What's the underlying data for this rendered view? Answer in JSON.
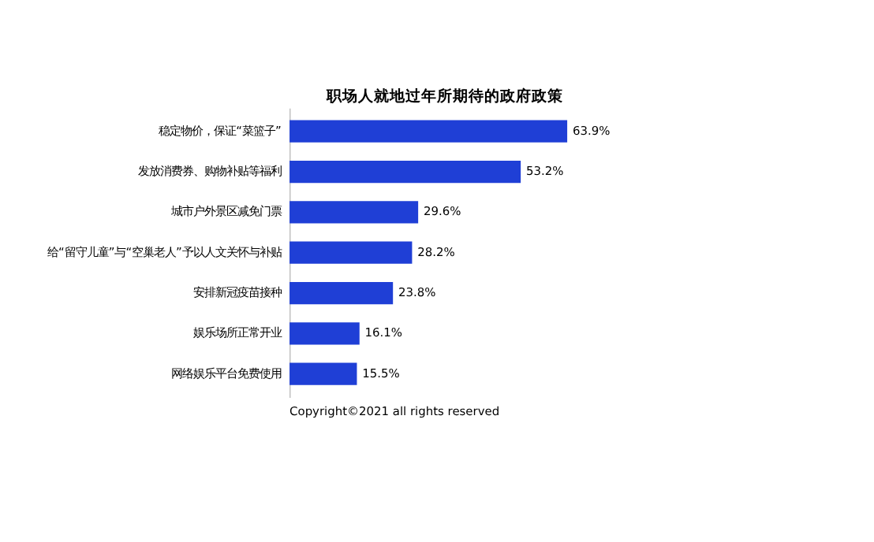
{
  "chart_data": {
    "type": "bar",
    "orientation": "horizontal",
    "title": "职场人就地过年所期待的政府政策",
    "categories": [
      "稳定物价，保证“菜篮子”",
      "发放消费券、购物补贴等福利",
      "城市户外景区减免门票",
      "给“留守儿童”与“空巢老人”予以人文关怀与补贴",
      "安排新冠疫苗接种",
      "娱乐场所正常开业",
      "网络娱乐平台免费使用"
    ],
    "values": [
      63.9,
      53.2,
      29.6,
      28.2,
      23.8,
      16.1,
      15.5
    ],
    "value_labels": [
      "63.9%",
      "53.2%",
      "29.6%",
      "28.2%",
      "23.8%",
      "16.1%",
      "15.5%"
    ],
    "color": "#1f3fd6",
    "annotations": [
      "Copyright©2021 all rights reserved"
    ]
  }
}
